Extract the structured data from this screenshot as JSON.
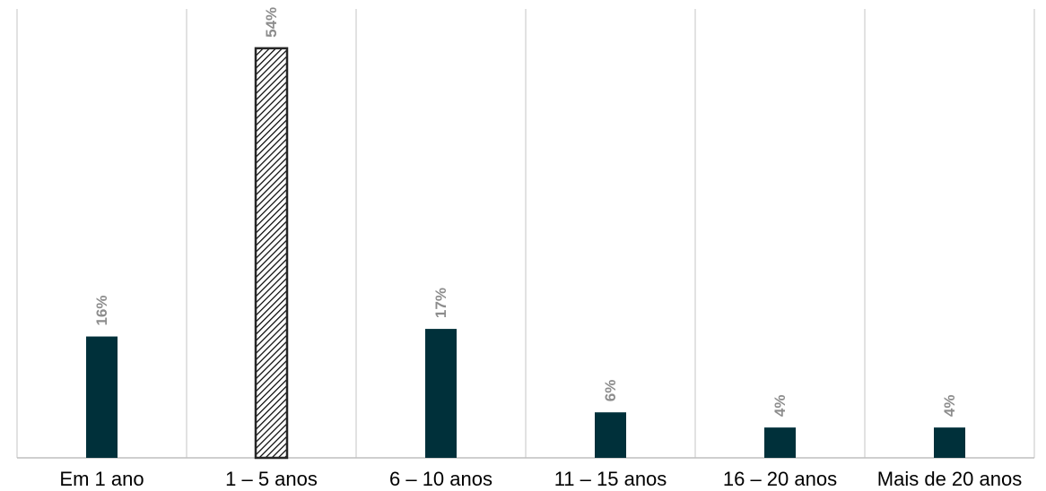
{
  "chart_data": {
    "type": "bar",
    "categories": [
      "Em 1 ano",
      "1 – 5 anos",
      "6 – 10 anos",
      "11 – 15 anos",
      "16 – 20 anos",
      "Mais de 20 anos"
    ],
    "values": [
      16,
      54,
      17,
      6,
      4,
      4
    ],
    "data_labels": [
      "16%",
      "54%",
      "17%",
      "6%",
      "4%",
      "4%"
    ],
    "highlight_index": 1,
    "ylim": [
      0,
      58
    ],
    "grid": "vertical separators between categories",
    "legend": "none",
    "colors": {
      "bar": "#00303a",
      "highlight_pattern": "diagonal black hatch",
      "data_label": "#8c8c8c",
      "gridline": "#d9d9d9",
      "axis": "#bfbfbf"
    }
  }
}
